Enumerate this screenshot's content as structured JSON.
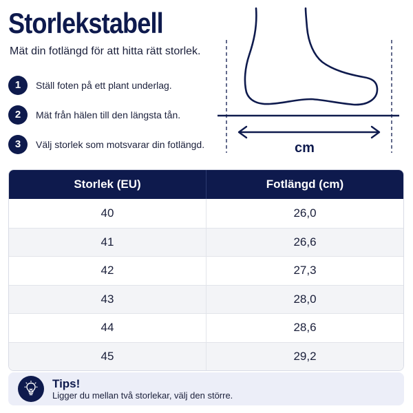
{
  "header": {
    "title": "Storlekstabell",
    "subtitle": "Mät din fotlängd för att hitta rätt storlek."
  },
  "steps": [
    {
      "number": "1",
      "text": "Ställ foten på ett plant underlag."
    },
    {
      "number": "2",
      "text": "Mät från hälen till den längsta tån."
    },
    {
      "number": "3",
      "text": "Välj storlek som motsvarar din fotlängd."
    }
  ],
  "diagram": {
    "unit_label": "cm",
    "icon": "foot-outline-icon"
  },
  "table": {
    "columns": [
      "Storlek (EU)",
      "Fotlängd (cm)"
    ],
    "rows": [
      [
        "40",
        "26,0"
      ],
      [
        "41",
        "26,6"
      ],
      [
        "42",
        "27,3"
      ],
      [
        "43",
        "28,0"
      ],
      [
        "44",
        "28,6"
      ],
      [
        "45",
        "29,2"
      ]
    ]
  },
  "tips": {
    "icon": "lightbulb-icon",
    "title": "Tips!",
    "text": "Ligger du mellan två storlekar, välj den större."
  },
  "colors": {
    "navy": "#0e1a4d",
    "text": "#1a1f3a",
    "row_alt": "#f3f4f7",
    "tips_bg": "#eceef8"
  }
}
